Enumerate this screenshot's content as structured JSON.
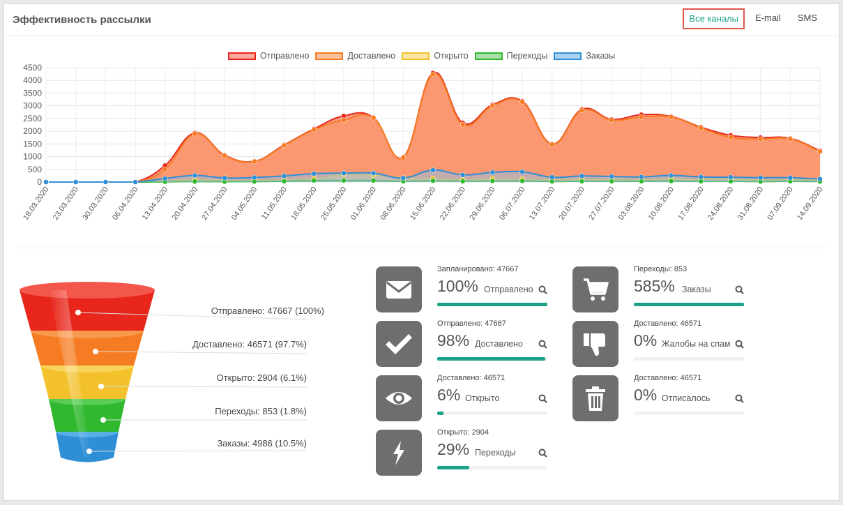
{
  "header": {
    "title": "Эффективность рассылки"
  },
  "tabs": [
    {
      "label": "Все каналы",
      "active": true
    },
    {
      "label": "E-mail",
      "active": false
    },
    {
      "label": "SMS",
      "active": false
    }
  ],
  "colors": {
    "accent": "#1aa389",
    "active_tab_border": "#e2574c",
    "icon_bg": "#6d6e70"
  },
  "chart_data": {
    "type": "area",
    "legend_position": "top",
    "grid": true,
    "ylim": [
      0,
      4500
    ],
    "yticks": [
      0,
      500,
      1000,
      1500,
      2000,
      2500,
      3000,
      3500,
      4000,
      4500
    ],
    "x": [
      "18.03.2020",
      "23.03.2020",
      "30.03.2020",
      "06.04.2020",
      "13.04.2020",
      "20.04.2020",
      "27.04.2020",
      "04.05.2020",
      "11.05.2020",
      "18.05.2020",
      "25.05.2020",
      "01.06.2020",
      "08.06.2020",
      "15.06.2020",
      "22.06.2020",
      "29.06.2020",
      "06.07.2020",
      "13.07.2020",
      "20.07.2020",
      "27.07.2020",
      "03.08.2020",
      "10.08.2020",
      "17.08.2020",
      "24.08.2020",
      "31.08.2020",
      "07.09.2020",
      "14.09.2020"
    ],
    "series": [
      {
        "name": "Отправлено",
        "color": "#e8261c",
        "fill": "rgba(250,120,90,0.75)",
        "values": [
          0,
          0,
          0,
          0,
          650,
          1930,
          1060,
          820,
          1460,
          2090,
          2600,
          2540,
          980,
          4290,
          2330,
          3040,
          3180,
          1500,
          2860,
          2470,
          2650,
          2580,
          2160,
          1840,
          1750,
          1720,
          1230
        ]
      },
      {
        "name": "Доставлено",
        "color": "#f57c22",
        "fill": "rgba(250,150,90,0.45)",
        "values": [
          0,
          0,
          0,
          0,
          500,
          1900,
          1040,
          810,
          1440,
          2060,
          2440,
          2530,
          960,
          4240,
          2260,
          3000,
          3150,
          1480,
          2820,
          2440,
          2560,
          2560,
          2130,
          1760,
          1690,
          1700,
          1200
        ]
      },
      {
        "name": "Открыто",
        "color": "#f3c12b",
        "fill": "rgba(250,220,130,0.5)",
        "values": [
          0,
          0,
          0,
          0,
          30,
          90,
          50,
          60,
          80,
          140,
          300,
          280,
          160,
          140,
          90,
          130,
          120,
          90,
          110,
          100,
          90,
          120,
          110,
          110,
          80,
          100,
          60
        ]
      },
      {
        "name": "Переходы",
        "color": "#30b82f",
        "fill": "rgba(120,210,120,0.45)",
        "values": [
          0,
          0,
          0,
          0,
          10,
          20,
          15,
          20,
          30,
          60,
          60,
          60,
          30,
          50,
          30,
          40,
          40,
          25,
          30,
          30,
          30,
          40,
          30,
          30,
          20,
          30,
          20
        ]
      },
      {
        "name": "Заказы",
        "color": "#2f8fd6",
        "fill": "rgba(140,190,235,0.5)",
        "values": [
          0,
          0,
          0,
          0,
          140,
          260,
          160,
          180,
          240,
          330,
          350,
          350,
          160,
          470,
          280,
          380,
          400,
          190,
          240,
          220,
          200,
          260,
          200,
          190,
          170,
          170,
          120
        ]
      }
    ]
  },
  "funnel": [
    {
      "label": "Отправлено: 47667  (100%)",
      "color": "#e8261c"
    },
    {
      "label": "Доставлено: 46571  (97.7%)",
      "color": "#f57c22"
    },
    {
      "label": "Открыто: 2904  (6.1%)",
      "color": "#f3c12b"
    },
    {
      "label": "Переходы: 853  (1.8%)",
      "color": "#30b82f"
    },
    {
      "label": "Заказы: 4986  (10.5%)",
      "color": "#2f8fd6"
    }
  ],
  "stats": [
    {
      "icon": "envelope-icon",
      "sub": "Запланировано: 47667",
      "pct": "100%",
      "name": "Отправлено",
      "progress": 1.0
    },
    {
      "icon": "check-icon",
      "sub": "Отправлено: 47667",
      "pct": "98%",
      "name": "Доставлено",
      "progress": 0.98
    },
    {
      "icon": "eye-icon",
      "sub": "Доставлено: 46571",
      "pct": "6%",
      "name": "Открыто",
      "progress": 0.06
    },
    {
      "icon": "bolt-icon",
      "sub": "Открыто: 2904",
      "pct": "29%",
      "name": "Переходы",
      "progress": 0.29
    },
    {
      "icon": "cart-icon",
      "sub": "Переходы: 853",
      "pct": "585%",
      "name": "Заказы",
      "progress": 1.0
    },
    {
      "icon": "thumbs-down-icon",
      "sub": "Доставлено: 46571",
      "pct": "0%",
      "name": "Жалобы на спам",
      "progress": 0
    },
    {
      "icon": "trash-icon",
      "sub": "Доставлено: 46571",
      "pct": "0%",
      "name": "Отписалось",
      "progress": 0
    }
  ]
}
